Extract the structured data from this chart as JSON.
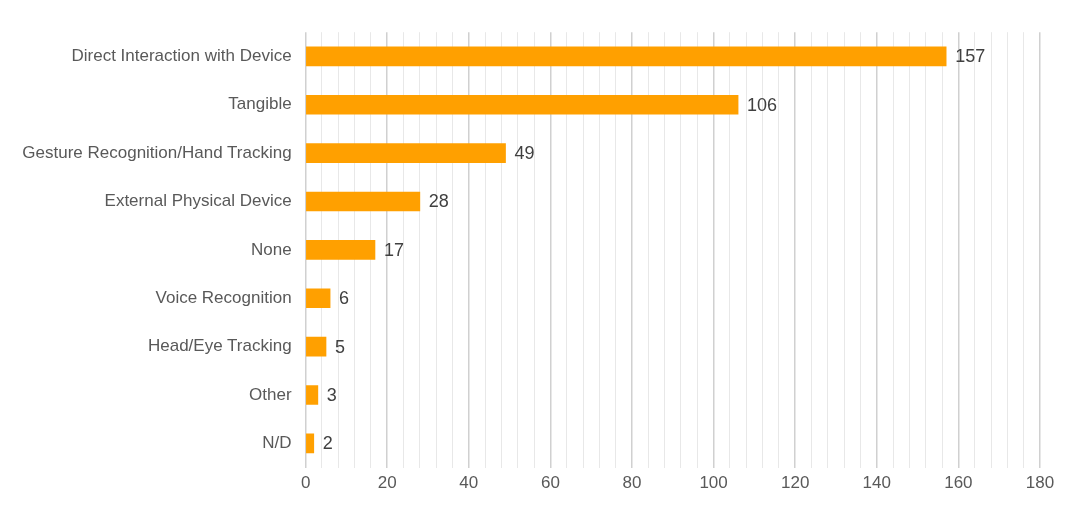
{
  "chart_data": {
    "type": "bar",
    "orientation": "horizontal",
    "categories": [
      "Direct Interaction with Device",
      "Tangible",
      "Gesture Recognition/Hand Tracking",
      "External Physical Device",
      "None",
      "Voice Recognition",
      "Head/Eye Tracking",
      "Other",
      "N/D"
    ],
    "values": [
      157,
      106,
      49,
      28,
      17,
      6,
      5,
      3,
      2
    ],
    "color": "#ffa000",
    "xlim": [
      0,
      180
    ],
    "xticks": [
      0,
      {
        "value": 4,
        "label": null
      },
      {
        "value": 8,
        "label": null
      },
      {
        "value": 12,
        "label": null
      },
      {
        "value": 16,
        "label": null
      },
      20,
      {
        "value": 24,
        "label": null
      },
      {
        "value": 28,
        "label": null
      },
      {
        "value": 32,
        "label": null
      },
      {
        "value": 36,
        "label": null
      },
      40,
      {
        "value": 44,
        "label": null
      },
      {
        "value": 48,
        "label": null
      },
      {
        "value": 52,
        "label": null
      },
      {
        "value": 56,
        "label": null
      },
      60,
      {
        "value": 64,
        "label": null
      },
      {
        "value": 68,
        "label": null
      },
      {
        "value": 72,
        "label": null
      },
      {
        "value": 76,
        "label": null
      },
      80,
      {
        "value": 84,
        "label": null
      },
      {
        "value": 88,
        "label": null
      },
      {
        "value": 92,
        "label": null
      },
      {
        "value": 96,
        "label": null
      },
      100,
      {
        "value": 104,
        "label": null
      },
      {
        "value": 108,
        "label": null
      },
      {
        "value": 112,
        "label": null
      },
      {
        "value": 116,
        "label": null
      },
      120,
      {
        "value": 124,
        "label": null
      },
      {
        "value": 128,
        "label": null
      },
      {
        "value": 132,
        "label": null
      },
      {
        "value": 136,
        "label": null
      },
      140,
      {
        "value": 144,
        "label": null
      },
      {
        "value": 148,
        "label": null
      },
      {
        "value": 152,
        "label": null
      },
      {
        "value": 156,
        "label": null
      },
      160,
      {
        "value": 164,
        "label": null
      },
      {
        "value": 168,
        "label": null
      },
      {
        "value": 172,
        "label": null
      },
      {
        "value": 176,
        "label": null
      },
      180
    ],
    "grid": "x",
    "data_labels": true
  }
}
